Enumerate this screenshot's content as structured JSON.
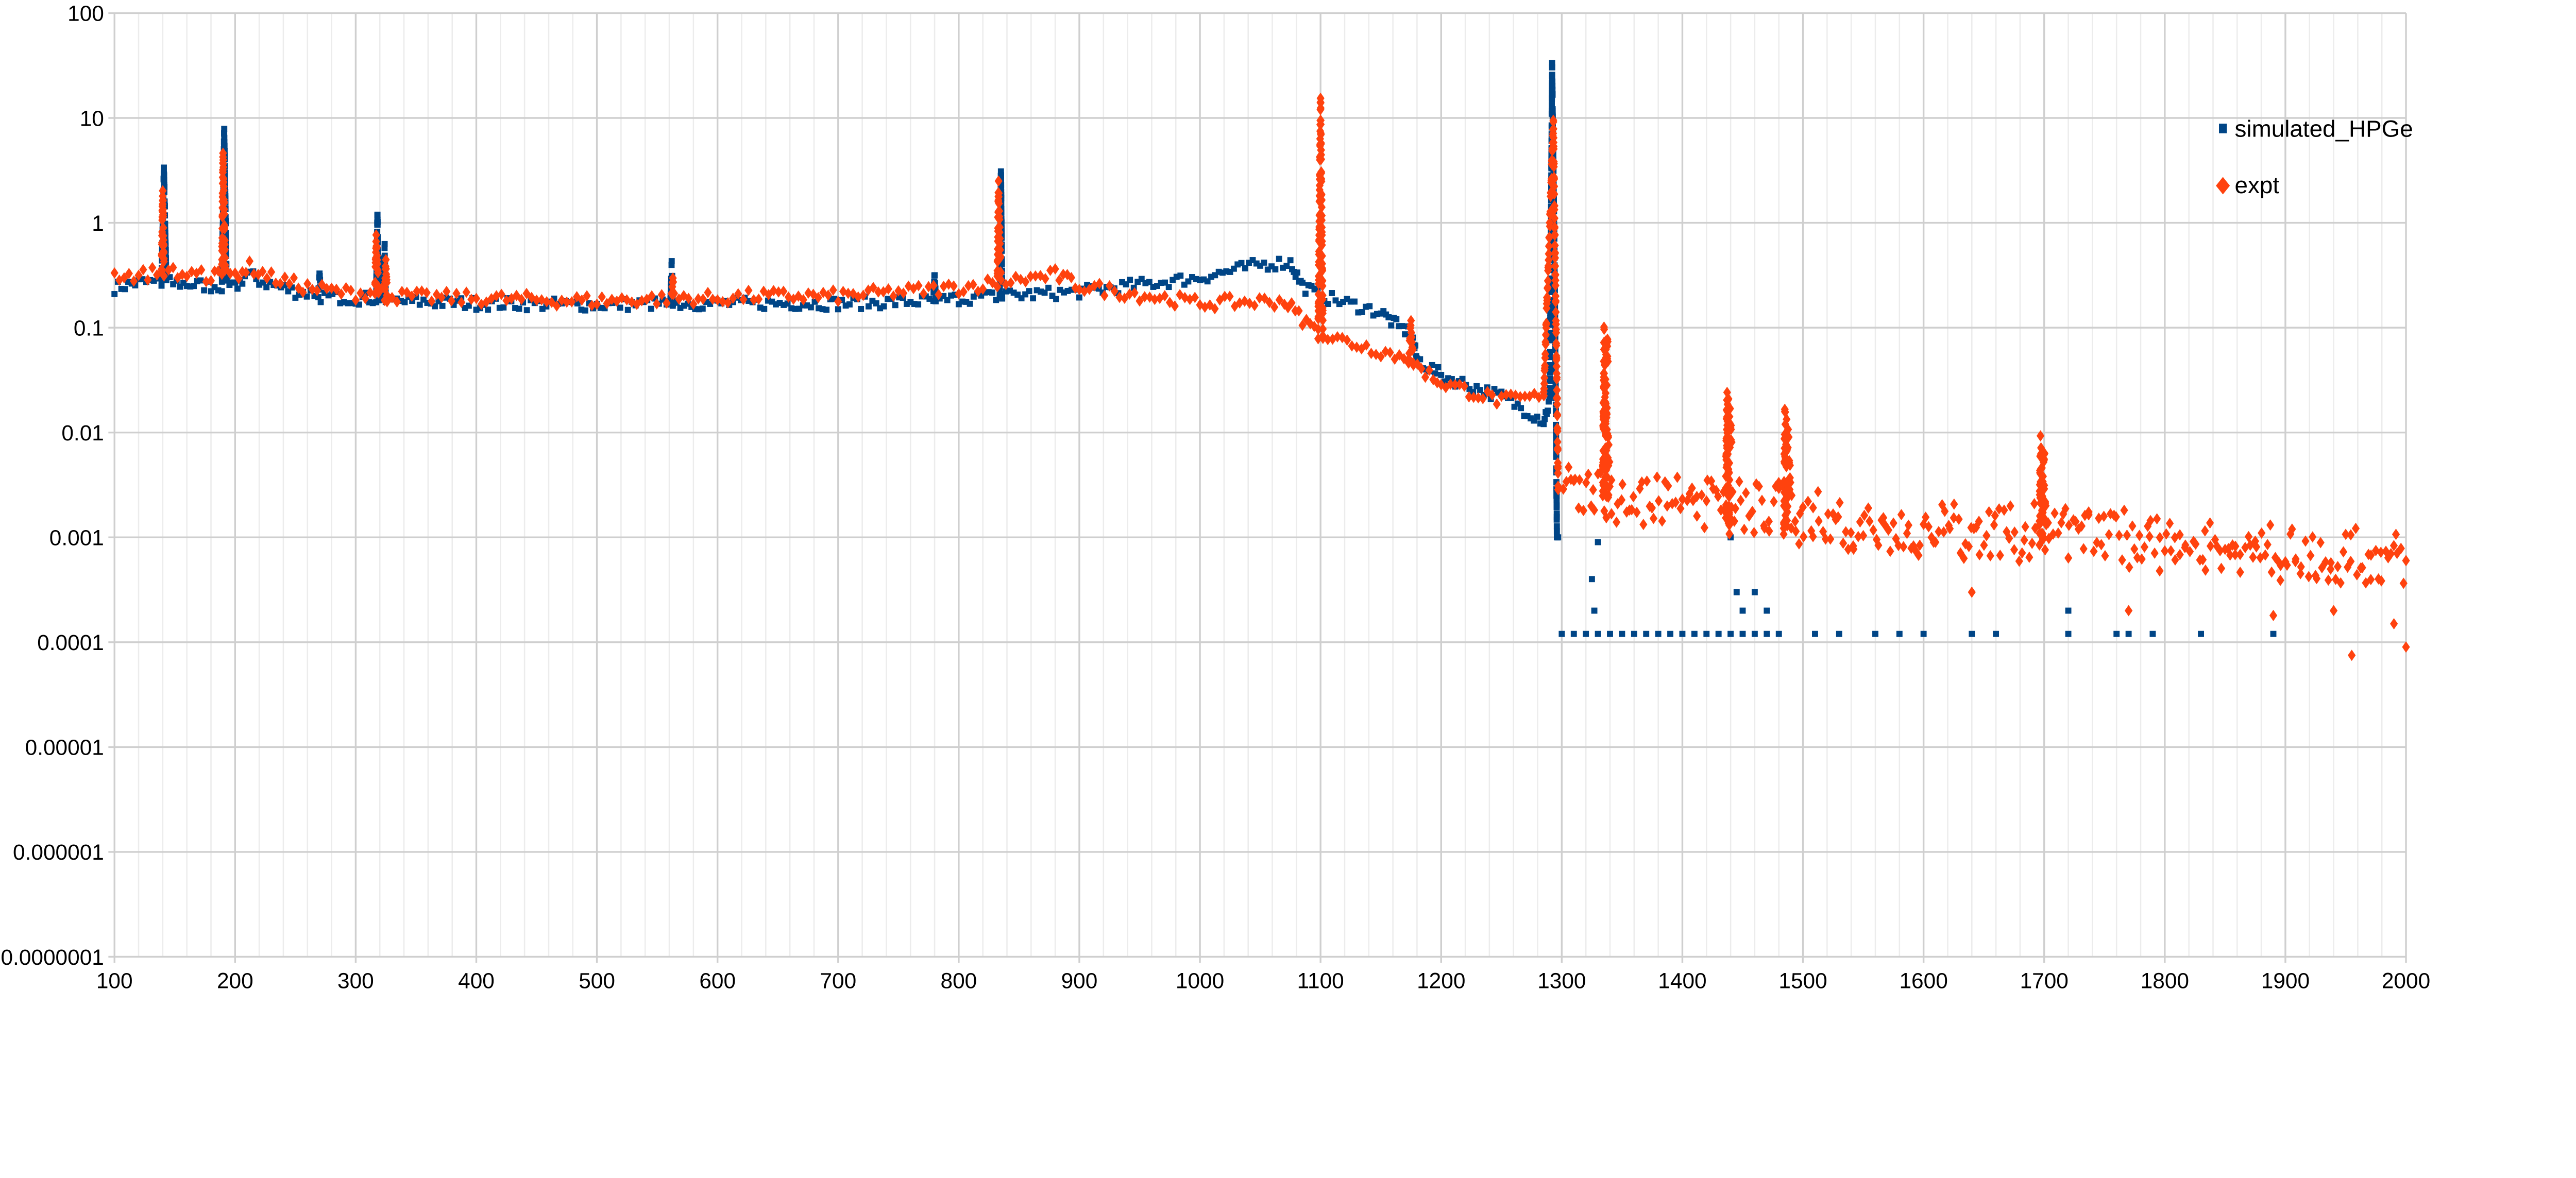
{
  "chart_data": {
    "type": "scatter",
    "title": "",
    "xlabel": "",
    "ylabel": "",
    "xlim": [
      100,
      2000
    ],
    "ylim": [
      1e-07,
      100
    ],
    "yscale": "log",
    "grid": true,
    "legend_position": "right",
    "x_ticks": [
      "100",
      "200",
      "300",
      "400",
      "500",
      "600",
      "700",
      "800",
      "900",
      "1000",
      "1100",
      "1200",
      "1300",
      "1400",
      "1500",
      "1600",
      "1700",
      "1800",
      "1900",
      "2000"
    ],
    "y_ticks": [
      "100",
      "10",
      "1",
      "0.1",
      "0.01",
      "0.001",
      "0.0001",
      "0.00001",
      "0.000001",
      "0.0000001"
    ],
    "series": [
      {
        "name": "simulated_HPGe",
        "color": "#004586",
        "marker": "square",
        "curve": [
          [
            100,
            0.24
          ],
          [
            120,
            0.27
          ],
          [
            139,
            0.27
          ],
          [
            141,
            3.3
          ],
          [
            143,
            0.27
          ],
          [
            160,
            0.26
          ],
          [
            180,
            0.25
          ],
          [
            189,
            0.25
          ],
          [
            191,
            7.5
          ],
          [
            193,
            0.25
          ],
          [
            200,
            0.24
          ],
          [
            210,
            0.33
          ],
          [
            220,
            0.28
          ],
          [
            250,
            0.22
          ],
          [
            269,
            0.21
          ],
          [
            270,
            0.3
          ],
          [
            271,
            0.2
          ],
          [
            300,
            0.19
          ],
          [
            317,
            0.19
          ],
          [
            318,
            1.25
          ],
          [
            319,
            0.19
          ],
          [
            323,
            0.19
          ],
          [
            324,
            0.55
          ],
          [
            325,
            0.18
          ],
          [
            400,
            0.17
          ],
          [
            500,
            0.165
          ],
          [
            561,
            0.17
          ],
          [
            562,
            0.38
          ],
          [
            563,
            0.17
          ],
          [
            600,
            0.17
          ],
          [
            700,
            0.17
          ],
          [
            779,
            0.18
          ],
          [
            780,
            0.3
          ],
          [
            781,
            0.18
          ],
          [
            800,
            0.19
          ],
          [
            834,
            0.2
          ],
          [
            835,
            3.4
          ],
          [
            836,
            0.2
          ],
          [
            900,
            0.22
          ],
          [
            1000,
            0.3
          ],
          [
            1050,
            0.4
          ],
          [
            1075,
            0.42
          ],
          [
            1085,
            0.25
          ],
          [
            1100,
            0.2
          ],
          [
            1150,
            0.14
          ],
          [
            1165,
            0.1
          ],
          [
            1175,
            0.09
          ],
          [
            1180,
            0.05
          ],
          [
            1200,
            0.035
          ],
          [
            1250,
            0.022
          ],
          [
            1285,
            0.013
          ],
          [
            1290,
            0.02
          ],
          [
            1292,
            32
          ],
          [
            1294,
            0.5
          ],
          [
            1296,
            0.001
          ]
        ],
        "points": [
          [
            1297,
            0.001
          ],
          [
            1325,
            0.0004
          ],
          [
            1327,
            0.0002
          ],
          [
            1330,
            0.0009
          ],
          [
            1440,
            0.001
          ],
          [
            1445,
            0.0003
          ],
          [
            1450,
            0.0002
          ],
          [
            1460,
            0.0003
          ],
          [
            1470,
            0.0002
          ],
          [
            1720,
            0.0002
          ],
          [
            1300,
            0.00012
          ],
          [
            1310,
            0.00012
          ],
          [
            1320,
            0.00012
          ],
          [
            1330,
            0.00012
          ],
          [
            1340,
            0.00012
          ],
          [
            1350,
            0.00012
          ],
          [
            1360,
            0.00012
          ],
          [
            1370,
            0.00012
          ],
          [
            1380,
            0.00012
          ],
          [
            1390,
            0.00012
          ],
          [
            1400,
            0.00012
          ],
          [
            1410,
            0.00012
          ],
          [
            1420,
            0.00012
          ],
          [
            1430,
            0.00012
          ],
          [
            1440,
            0.00012
          ],
          [
            1450,
            0.00012
          ],
          [
            1460,
            0.00012
          ],
          [
            1470,
            0.00012
          ],
          [
            1480,
            0.00012
          ],
          [
            1510,
            0.00012
          ],
          [
            1530,
            0.00012
          ],
          [
            1560,
            0.00012
          ],
          [
            1580,
            0.00012
          ],
          [
            1600,
            0.00012
          ],
          [
            1640,
            0.00012
          ],
          [
            1660,
            0.00012
          ],
          [
            1720,
            0.00012
          ],
          [
            1760,
            0.00012
          ],
          [
            1770,
            0.00012
          ],
          [
            1790,
            0.00012
          ],
          [
            1830,
            0.00012
          ],
          [
            1890,
            0.00012
          ]
        ]
      },
      {
        "name": "expt",
        "color": "#ff420e",
        "marker": "diamond",
        "curve": [
          [
            100,
            0.32
          ],
          [
            120,
            0.31
          ],
          [
            139,
            0.35
          ],
          [
            140,
            2
          ],
          [
            141,
            0.35
          ],
          [
            160,
            0.32
          ],
          [
            180,
            0.31
          ],
          [
            189,
            0.32
          ],
          [
            190,
            4.5
          ],
          [
            192,
            0.32
          ],
          [
            200,
            0.32
          ],
          [
            212,
            0.38
          ],
          [
            230,
            0.3
          ],
          [
            260,
            0.24
          ],
          [
            300,
            0.21
          ],
          [
            316,
            0.22
          ],
          [
            317,
            0.7
          ],
          [
            319,
            0.22
          ],
          [
            324,
            0.2
          ],
          [
            325,
            0.45
          ],
          [
            326,
            0.2
          ],
          [
            400,
            0.19
          ],
          [
            500,
            0.18
          ],
          [
            562,
            0.19
          ],
          [
            563,
            0.3
          ],
          [
            564,
            0.19
          ],
          [
            600,
            0.19
          ],
          [
            630,
            0.2
          ],
          [
            700,
            0.2
          ],
          [
            800,
            0.24
          ],
          [
            832,
            0.27
          ],
          [
            833,
            2.2
          ],
          [
            835,
            0.27
          ],
          [
            880,
            0.32
          ],
          [
            900,
            0.25
          ],
          [
            1000,
            0.17
          ],
          [
            1070,
            0.18
          ],
          [
            1085,
            0.12
          ],
          [
            1098,
            0.09
          ],
          [
            1100,
            14
          ],
          [
            1102,
            0.085
          ],
          [
            1150,
            0.06
          ],
          [
            1173,
            0.05
          ],
          [
            1175,
            0.11
          ],
          [
            1177,
            0.045
          ],
          [
            1200,
            0.03
          ],
          [
            1250,
            0.02
          ],
          [
            1285,
            0.022
          ],
          [
            1293,
            9
          ],
          [
            1297,
            0.003
          ],
          [
            1310,
            0.003
          ],
          [
            1334,
            0.0025
          ],
          [
            1335,
            0.065
          ],
          [
            1337,
            0.0025
          ],
          [
            1400,
            0.002
          ],
          [
            1436,
            0.002
          ],
          [
            1437,
            0.018
          ],
          [
            1439,
            0.002
          ],
          [
            1484,
            0.0018
          ],
          [
            1485,
            0.011
          ],
          [
            1487,
            0.0018
          ],
          [
            1500,
            0.0015
          ],
          [
            1600,
            0.0012
          ],
          [
            1696,
            0.0011
          ],
          [
            1697,
            0.006
          ],
          [
            1699,
            0.0011
          ],
          [
            1800,
            0.0009
          ],
          [
            1900,
            0.0007
          ],
          [
            2000,
            0.0006
          ]
        ],
        "points": [
          [
            1890,
            0.00018
          ],
          [
            1955,
            7.5e-05
          ],
          [
            2000,
            9e-05
          ],
          [
            1770,
            0.0002
          ],
          [
            1640,
            0.0003
          ],
          [
            1990,
            0.00015
          ],
          [
            1940,
            0.0002
          ]
        ]
      }
    ]
  }
}
